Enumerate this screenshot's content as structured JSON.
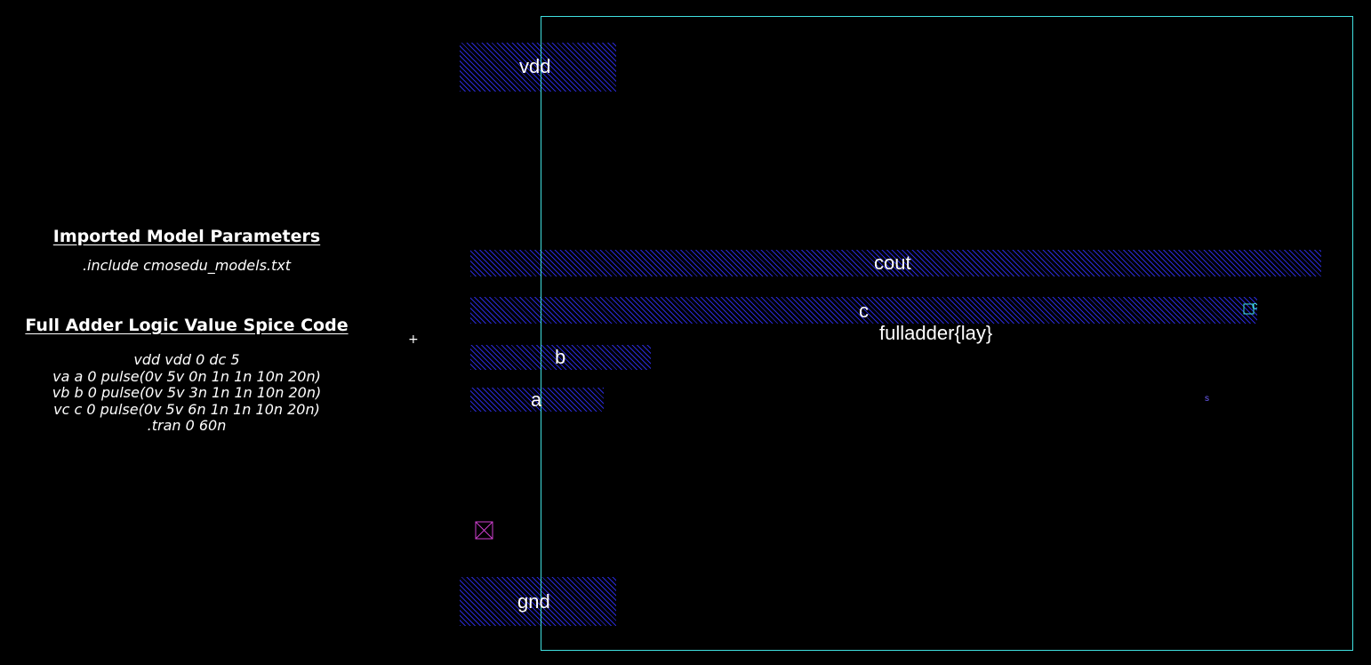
{
  "notes": {
    "model_heading": "Imported Model Parameters",
    "model_include": ".include cmosedu_models.txt",
    "spice_heading": "Full Adder Logic Value Spice Code",
    "spice_lines": [
      "vdd vdd 0 dc 5",
      "va a 0 pulse(0v 5v 0n 1n 1n 10n 20n)",
      "vb b 0 pulse(0v 5v 3n 1n 1n 10n 20n)",
      "vc c 0 pulse(0v 5v 6n 1n 1n 10n 20n)",
      ".tran 0 60n"
    ]
  },
  "layout": {
    "cell_name": "fulladder{lay}",
    "origin_marker": "+",
    "pins": {
      "vdd": "vdd",
      "cout": "cout",
      "c": "c",
      "b": "b",
      "a": "a",
      "gnd": "gnd"
    },
    "port_marker_label": "c",
    "small_marker_label": "s"
  },
  "colors": {
    "background": "#000000",
    "metal_hatch": "#2a2ad4",
    "cell_outline": "#40e0e0",
    "contact": "#d040d0",
    "small_marker": "#7060ff"
  }
}
